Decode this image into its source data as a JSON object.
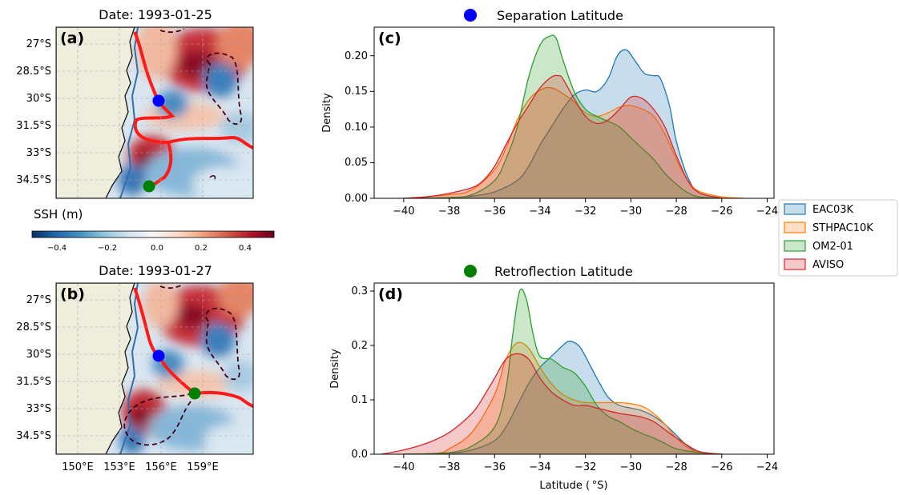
{
  "colors": {
    "EAC03K": "#1f77b4",
    "STHPAC10K": "#ff7f0e",
    "OM2-01": "#2ca02c",
    "AVISO": "#d62728",
    "separation_marker": "#0000ff",
    "retroflection_marker": "#008000",
    "front_line": "#ff0000",
    "land": "#efeddc"
  },
  "maps": {
    "a": {
      "panel": "(a)",
      "title": "Date: 1993-01-25"
    },
    "b": {
      "panel": "(b)",
      "title": "Date: 1993-01-27"
    },
    "lat_ticks": [
      "27°S",
      "28.5°S",
      "30°S",
      "31.5°S",
      "33°S",
      "34.5°S"
    ],
    "lon_ticks": [
      "150°E",
      "153°E",
      "156°E",
      "159°E"
    ],
    "colorbar": {
      "label": "SSH (m)",
      "ticks": [
        "−0.4",
        "−0.2",
        "0.0",
        "0.2",
        "0.4"
      ],
      "range": [
        -0.53,
        0.53
      ],
      "colormap": "RdBu_r"
    }
  },
  "chart_data": [
    {
      "type": "area",
      "panel": "(c)",
      "title": "Separation Latitude",
      "xlabel": "",
      "ylabel": "Density",
      "xlim": [
        -41.3,
        -23.7
      ],
      "ylim": [
        0,
        0.24
      ],
      "x_ticks": [
        -40,
        -38,
        -36,
        -34,
        -32,
        -30,
        -28,
        -26,
        -24
      ],
      "y_ticks": [
        "0.00",
        "0.05",
        "0.10",
        "0.15",
        "0.20"
      ],
      "series": [
        {
          "name": "EAC03K",
          "x": [
            -40,
            -38,
            -37,
            -36,
            -35,
            -34.5,
            -34,
            -33.5,
            -33,
            -32.5,
            -32,
            -31.5,
            -31,
            -30.6,
            -30.2,
            -29.8,
            -29.4,
            -29,
            -28.7,
            -28.3,
            -28,
            -27.5,
            -27,
            -26
          ],
          "y": [
            0,
            0.001,
            0.003,
            0.009,
            0.025,
            0.045,
            0.075,
            0.1,
            0.125,
            0.145,
            0.152,
            0.15,
            0.168,
            0.2,
            0.208,
            0.192,
            0.175,
            0.172,
            0.168,
            0.13,
            0.08,
            0.03,
            0.008,
            0
          ]
        },
        {
          "name": "STHPAC10K",
          "x": [
            -40,
            -38,
            -37,
            -36,
            -35.5,
            -35,
            -34.5,
            -34,
            -33.5,
            -33,
            -32.5,
            -32,
            -31.5,
            -31,
            -30.5,
            -30,
            -29.5,
            -29,
            -28.5,
            -28,
            -27.5,
            -27,
            -26,
            -25
          ],
          "y": [
            0,
            0.005,
            0.012,
            0.04,
            0.07,
            0.11,
            0.138,
            0.152,
            0.155,
            0.147,
            0.135,
            0.12,
            0.115,
            0.12,
            0.128,
            0.13,
            0.125,
            0.115,
            0.09,
            0.055,
            0.025,
            0.01,
            0.002,
            0
          ]
        },
        {
          "name": "OM2-01",
          "x": [
            -40,
            -38,
            -37,
            -36,
            -35.5,
            -35,
            -34.5,
            -34,
            -33.6,
            -33.3,
            -33,
            -32.5,
            -32,
            -31.5,
            -31,
            -30.5,
            -30,
            -29.5,
            -29,
            -28.5,
            -28,
            -27.5,
            -27,
            -26
          ],
          "y": [
            0,
            0.001,
            0.005,
            0.025,
            0.055,
            0.1,
            0.17,
            0.215,
            0.227,
            0.225,
            0.195,
            0.15,
            0.125,
            0.115,
            0.108,
            0.1,
            0.085,
            0.07,
            0.055,
            0.035,
            0.02,
            0.008,
            0.002,
            0
          ]
        },
        {
          "name": "AVISO",
          "x": [
            -40,
            -39,
            -38,
            -37,
            -36.5,
            -36,
            -35.5,
            -35,
            -34.5,
            -34,
            -33.5,
            -33.2,
            -33,
            -32.5,
            -32,
            -31.5,
            -31,
            -30.5,
            -30,
            -29.5,
            -29,
            -28.5,
            -28,
            -27.5,
            -27,
            -26
          ],
          "y": [
            0,
            0.002,
            0.007,
            0.015,
            0.025,
            0.045,
            0.075,
            0.105,
            0.13,
            0.155,
            0.17,
            0.172,
            0.168,
            0.14,
            0.115,
            0.105,
            0.11,
            0.125,
            0.142,
            0.14,
            0.125,
            0.1,
            0.06,
            0.025,
            0.008,
            0
          ]
        }
      ]
    },
    {
      "type": "area",
      "panel": "(d)",
      "title": "Retroflection Latitude",
      "xlabel": "Latitude ($^\\circ$S)",
      "ylabel": "Density",
      "xlim": [
        -41.3,
        -23.7
      ],
      "ylim": [
        0,
        0.315
      ],
      "x_ticks": [
        -40,
        -38,
        -36,
        -34,
        -32,
        -30,
        -28,
        -26,
        -24
      ],
      "y_ticks": [
        "0.0",
        "0.1",
        "0.2",
        "0.3"
      ],
      "series": [
        {
          "name": "EAC03K",
          "x": [
            -40,
            -38,
            -37,
            -36,
            -35.5,
            -35,
            -34.5,
            -34,
            -33.5,
            -33,
            -32.7,
            -32.3,
            -32,
            -31.5,
            -31,
            -30.5,
            -30,
            -29.5,
            -29,
            -28.5,
            -28,
            -27.5,
            -27,
            -26
          ],
          "y": [
            0,
            0.002,
            0.008,
            0.025,
            0.05,
            0.09,
            0.13,
            0.16,
            0.18,
            0.2,
            0.208,
            0.2,
            0.18,
            0.14,
            0.105,
            0.09,
            0.085,
            0.08,
            0.07,
            0.055,
            0.035,
            0.015,
            0.005,
            0
          ]
        },
        {
          "name": "STHPAC10K",
          "x": [
            -40,
            -38.5,
            -38,
            -37,
            -36,
            -35.5,
            -35,
            -34.5,
            -34,
            -33.5,
            -33,
            -32.5,
            -32,
            -31.5,
            -31,
            -30.5,
            -30,
            -29.5,
            -29,
            -28.5,
            -28,
            -27.5,
            -27,
            -26
          ],
          "y": [
            0,
            0.002,
            0.01,
            0.04,
            0.11,
            0.175,
            0.205,
            0.195,
            0.16,
            0.13,
            0.11,
            0.1,
            0.095,
            0.095,
            0.095,
            0.095,
            0.093,
            0.088,
            0.075,
            0.055,
            0.03,
            0.012,
            0.004,
            0
          ]
        },
        {
          "name": "OM2-01",
          "x": [
            -40,
            -38,
            -37,
            -36,
            -35.5,
            -35.2,
            -34.9,
            -34.6,
            -34.3,
            -34,
            -33.5,
            -33,
            -32.5,
            -32,
            -31.5,
            -31,
            -30.5,
            -30,
            -29.5,
            -29,
            -28.5,
            -28,
            -27,
            -26
          ],
          "y": [
            0,
            0.003,
            0.015,
            0.05,
            0.12,
            0.22,
            0.3,
            0.285,
            0.22,
            0.18,
            0.175,
            0.16,
            0.15,
            0.125,
            0.09,
            0.07,
            0.06,
            0.048,
            0.038,
            0.03,
            0.02,
            0.01,
            0.003,
            0
          ]
        },
        {
          "name": "AVISO",
          "x": [
            -41,
            -40,
            -39,
            -38,
            -37,
            -36.5,
            -36,
            -35.5,
            -35,
            -34.5,
            -34,
            -33.5,
            -33,
            -32.5,
            -32,
            -31.5,
            -31,
            -30.5,
            -30,
            -29.5,
            -29,
            -28.5,
            -28,
            -27,
            -26
          ],
          "y": [
            0,
            0.008,
            0.02,
            0.04,
            0.075,
            0.105,
            0.14,
            0.175,
            0.185,
            0.175,
            0.14,
            0.115,
            0.1,
            0.09,
            0.09,
            0.085,
            0.08,
            0.075,
            0.072,
            0.068,
            0.06,
            0.045,
            0.03,
            0.005,
            0
          ]
        }
      ]
    }
  ],
  "legend": {
    "entries": [
      "EAC03K",
      "STHPAC10K",
      "OM2-01",
      "AVISO"
    ]
  }
}
